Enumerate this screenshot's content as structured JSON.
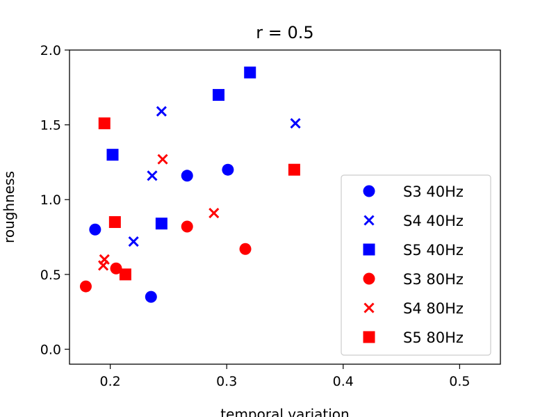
{
  "chart_data": {
    "type": "scatter",
    "title": "r = 0.5",
    "xlabel": "temporal variation",
    "ylabel": "roughness",
    "xlim": [
      0.165,
      0.535
    ],
    "ylim": [
      -0.1,
      2.0
    ],
    "xticks": [
      0.2,
      0.3,
      0.4,
      0.5
    ],
    "xtick_labels": [
      "0.2",
      "0.3",
      "0.4",
      "0.5"
    ],
    "yticks": [
      0.0,
      0.5,
      1.0,
      1.5,
      2.0
    ],
    "ytick_labels": [
      "0.0",
      "0.5",
      "1.0",
      "1.5",
      "2.0"
    ],
    "grid": false,
    "legend_position": "lower-right",
    "series": [
      {
        "name": "S3 40Hz",
        "marker": "circle",
        "color": "#0000ff",
        "points": [
          [
            0.187,
            0.8
          ],
          [
            0.235,
            0.35
          ],
          [
            0.266,
            1.16
          ],
          [
            0.301,
            1.2
          ]
        ]
      },
      {
        "name": "S4 40Hz",
        "marker": "x",
        "color": "#0000ff",
        "points": [
          [
            0.22,
            0.72
          ],
          [
            0.236,
            1.16
          ],
          [
            0.244,
            1.59
          ],
          [
            0.359,
            1.51
          ]
        ]
      },
      {
        "name": "S5 40Hz",
        "marker": "square",
        "color": "#0000ff",
        "points": [
          [
            0.202,
            1.3
          ],
          [
            0.244,
            0.84
          ],
          [
            0.293,
            1.7
          ],
          [
            0.32,
            1.85
          ]
        ]
      },
      {
        "name": "S3 80Hz",
        "marker": "circle",
        "color": "#ff0000",
        "points": [
          [
            0.179,
            0.42
          ],
          [
            0.205,
            0.54
          ],
          [
            0.266,
            0.82
          ],
          [
            0.316,
            0.67
          ]
        ]
      },
      {
        "name": "S4 80Hz",
        "marker": "x",
        "color": "#ff0000",
        "points": [
          [
            0.194,
            0.56
          ],
          [
            0.195,
            0.6
          ],
          [
            0.245,
            1.27
          ],
          [
            0.289,
            0.91
          ]
        ]
      },
      {
        "name": "S5 80Hz",
        "marker": "square",
        "color": "#ff0000",
        "points": [
          [
            0.195,
            1.51
          ],
          [
            0.204,
            0.85
          ],
          [
            0.213,
            0.5
          ],
          [
            0.358,
            1.2
          ]
        ]
      }
    ]
  }
}
